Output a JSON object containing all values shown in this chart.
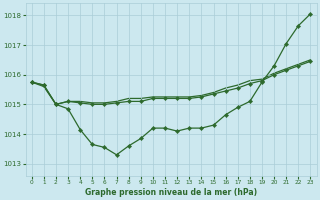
{
  "bg_color": "#cce8ef",
  "grid_color": "#aacdd8",
  "line_color": "#2d6a2d",
  "title": "Graphe pression niveau de la mer (hPa)",
  "xlim": [
    -0.5,
    23.5
  ],
  "ylim": [
    1012.6,
    1018.4
  ],
  "yticks": [
    1013,
    1014,
    1015,
    1016,
    1017,
    1018
  ],
  "xticks": [
    0,
    1,
    2,
    3,
    4,
    5,
    6,
    7,
    8,
    9,
    10,
    11,
    12,
    13,
    14,
    15,
    16,
    17,
    18,
    19,
    20,
    21,
    22,
    23
  ],
  "s1_x": [
    0,
    1,
    2,
    3,
    4,
    5,
    6,
    7,
    8,
    9,
    10,
    11,
    12,
    13,
    14,
    15,
    16,
    17,
    18,
    19,
    20,
    21,
    22,
    23
  ],
  "s1_y": [
    1015.75,
    1015.65,
    1015.0,
    1014.85,
    1014.15,
    1013.65,
    1013.55,
    1013.3,
    1013.6,
    1013.85,
    1014.2,
    1014.2,
    1014.1,
    1014.2,
    1014.2,
    1014.3,
    1014.65,
    1014.9,
    1015.1,
    1015.75,
    1016.3,
    1017.05,
    1017.65,
    1018.05
  ],
  "s2_x": [
    0,
    1,
    2,
    3,
    4,
    5,
    6,
    7,
    8,
    9,
    10,
    11,
    12,
    13,
    14,
    15,
    16,
    17,
    18,
    19,
    20,
    21,
    22,
    23
  ],
  "s2_y": [
    1015.75,
    1015.65,
    1015.0,
    1015.1,
    1015.05,
    1015.0,
    1015.0,
    1015.05,
    1015.1,
    1015.1,
    1015.2,
    1015.2,
    1015.2,
    1015.2,
    1015.25,
    1015.35,
    1015.45,
    1015.55,
    1015.7,
    1015.8,
    1016.0,
    1016.15,
    1016.3,
    1016.45
  ],
  "s3_x": [
    0,
    1,
    2,
    3,
    4,
    5,
    6,
    7,
    8,
    9,
    10,
    11,
    12,
    13,
    14,
    15,
    16,
    17,
    18,
    19,
    20,
    21,
    22,
    23
  ],
  "s3_y": [
    1015.75,
    1015.6,
    1015.0,
    1015.1,
    1015.1,
    1015.05,
    1015.05,
    1015.1,
    1015.2,
    1015.2,
    1015.25,
    1015.25,
    1015.25,
    1015.25,
    1015.3,
    1015.4,
    1015.55,
    1015.65,
    1015.8,
    1015.85,
    1016.05,
    1016.2,
    1016.35,
    1016.5
  ]
}
